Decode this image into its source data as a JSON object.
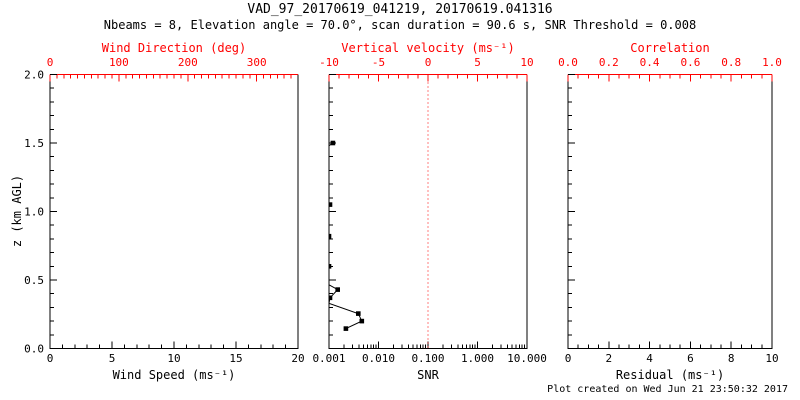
{
  "colors": {
    "red": "#ff0000",
    "black": "#000000",
    "background": "#ffffff"
  },
  "chart_data": {
    "type": "line",
    "subtype": "multi-panel vertical profile (VAD quicklook)",
    "title": "VAD_97_20170619_041219, 20170619.041316",
    "subtitle": "Nbeams = 8, Elevation angle = 70.0°, scan duration = 90.6 s, SNR Threshold = 0.008",
    "footer": "Plot created on Wed Jun 21 23:50:32 2017",
    "y_axis": {
      "label": "z (km AGL)",
      "range": [
        0,
        2
      ],
      "tick_values": [
        0,
        0.5,
        1,
        1.5,
        2
      ],
      "tick_labels": [
        "0.0",
        "0.5",
        "1.0",
        "1.5",
        "2.0"
      ],
      "minor_step": 0.1,
      "color": "#000000"
    },
    "panels": [
      {
        "name": "wind-speed-panel",
        "bottom_axis": {
          "label": "Wind Speed (ms⁻¹)",
          "scale": "linear",
          "range": [
            0,
            20
          ],
          "tick_values": [
            0,
            5,
            10,
            15,
            20
          ],
          "tick_labels": [
            "0",
            "5",
            "10",
            "15",
            "20"
          ],
          "minor_step": 1,
          "color": "#000000"
        },
        "top_axis": {
          "label": "Wind Direction (deg)",
          "scale": "linear",
          "range": [
            0,
            360
          ],
          "tick_values": [
            0,
            100,
            200,
            300
          ],
          "tick_labels": [
            "0",
            "100",
            "200",
            "300"
          ],
          "minor_step": 10,
          "color": "#ff0000"
        },
        "points": [],
        "line_segments": []
      },
      {
        "name": "snr-panel",
        "bottom_axis": {
          "label": "SNR",
          "scale": "log",
          "range": [
            0.001,
            10
          ],
          "tick_values": [
            0.001,
            0.01,
            0.1,
            1,
            10
          ],
          "tick_labels": [
            "0.001",
            "0.010",
            "0.100",
            "1.000",
            "10.000"
          ],
          "color": "#000000"
        },
        "top_axis": {
          "label": "Vertical velocity (ms⁻¹)",
          "scale": "linear",
          "range": [
            -10,
            10
          ],
          "tick_values": [
            -10,
            -5,
            0,
            5,
            10
          ],
          "tick_labels": [
            "-10",
            "-5",
            "0",
            "5",
            "10"
          ],
          "minor_step": 1,
          "color": "#ff0000"
        },
        "reference_line": {
          "value": 0.1,
          "equivalent_top_axis_value": 0,
          "style": "dotted",
          "color": "#ff0000"
        },
        "marker": "filled-square",
        "points": [
          [
            0.0012,
            1.5
          ],
          [
            0.00105,
            1.05
          ],
          [
            0.001,
            0.82
          ],
          [
            0.001,
            0.6
          ],
          [
            0.0015,
            0.43
          ],
          [
            0.00105,
            0.37
          ],
          [
            0.0039,
            0.255
          ],
          [
            0.0046,
            0.2
          ],
          [
            0.0022,
            0.145
          ]
        ],
        "line_segments": [
          [
            [
              0.001,
              1.48
            ],
            [
              0.0012,
              1.5
            ]
          ],
          [
            [
              0.001,
              0.465
            ],
            [
              0.0015,
              0.43
            ],
            [
              0.00105,
              0.37
            ],
            [
              0.001,
              0.33
            ],
            [
              0.0039,
              0.255
            ],
            [
              0.0046,
              0.2
            ],
            [
              0.0022,
              0.145
            ]
          ]
        ]
      },
      {
        "name": "residual-panel",
        "bottom_axis": {
          "label": "Residual (ms⁻¹)",
          "scale": "linear",
          "range": [
            0,
            10
          ],
          "tick_values": [
            0,
            2,
            4,
            6,
            8,
            10
          ],
          "tick_labels": [
            "0",
            "2",
            "4",
            "6",
            "8",
            "10"
          ],
          "minor_step": 0.5,
          "color": "#000000"
        },
        "top_axis": {
          "label": "Correlation",
          "scale": "linear",
          "range": [
            0,
            1
          ],
          "tick_values": [
            0,
            0.2,
            0.4,
            0.6,
            0.8,
            1
          ],
          "tick_labels": [
            "0.0",
            "0.2",
            "0.4",
            "0.6",
            "0.8",
            "1.0"
          ],
          "minor_step": 0.05,
          "color": "#ff0000"
        },
        "points": [],
        "line_segments": []
      }
    ]
  }
}
